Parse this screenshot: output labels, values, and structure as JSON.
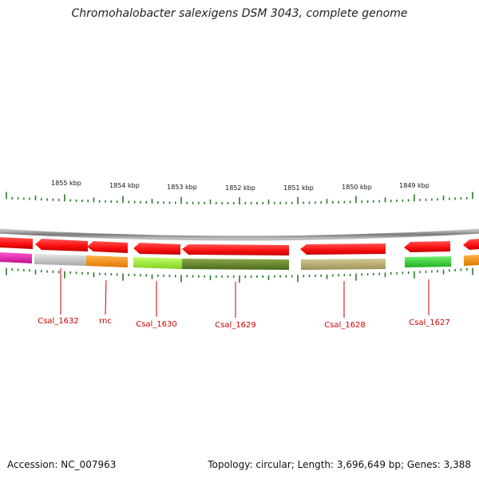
{
  "title": "Chromohalobacter salexigens DSM 3043, complete genome",
  "footer": {
    "accession": "Accession: NC_007963",
    "summary": "Topology: circular; Length: 3,696,649 bp; Genes: 3,388"
  },
  "colors": {
    "tick": "#2a7a2a",
    "backbone": "#888888",
    "label": "#cc0000",
    "cds_forward": "#ff2020"
  },
  "chart_data": {
    "type": "circular-genome-map",
    "unit": "kbp",
    "positions_kbp": [
      1855,
      1854,
      1853,
      1852,
      1851,
      1850,
      1849
    ],
    "tick_labels": [
      "1855 kbp",
      "1854 kbp",
      "1853 kbp",
      "1852 kbp",
      "1851 kbp",
      "1850 kbp",
      "1849 kbp"
    ],
    "gene_labels": [
      "Csal_1632",
      "rnc",
      "Csal_1630",
      "Csal_1629",
      "Csal_1628",
      "Csal_1627"
    ],
    "genes": [
      {
        "name": "Csal_1632",
        "color": "#c8c8c8"
      },
      {
        "name": "rnc",
        "color": "#ff9a1a"
      },
      {
        "name": "Csal_1630",
        "color": "#a4f238"
      },
      {
        "name": "Csal_1629",
        "color": "#6b8c2a"
      },
      {
        "name": "Csal_1628",
        "color": "#b8b070"
      },
      {
        "name": "Csal_1627",
        "color": "#3ad13a"
      }
    ]
  }
}
